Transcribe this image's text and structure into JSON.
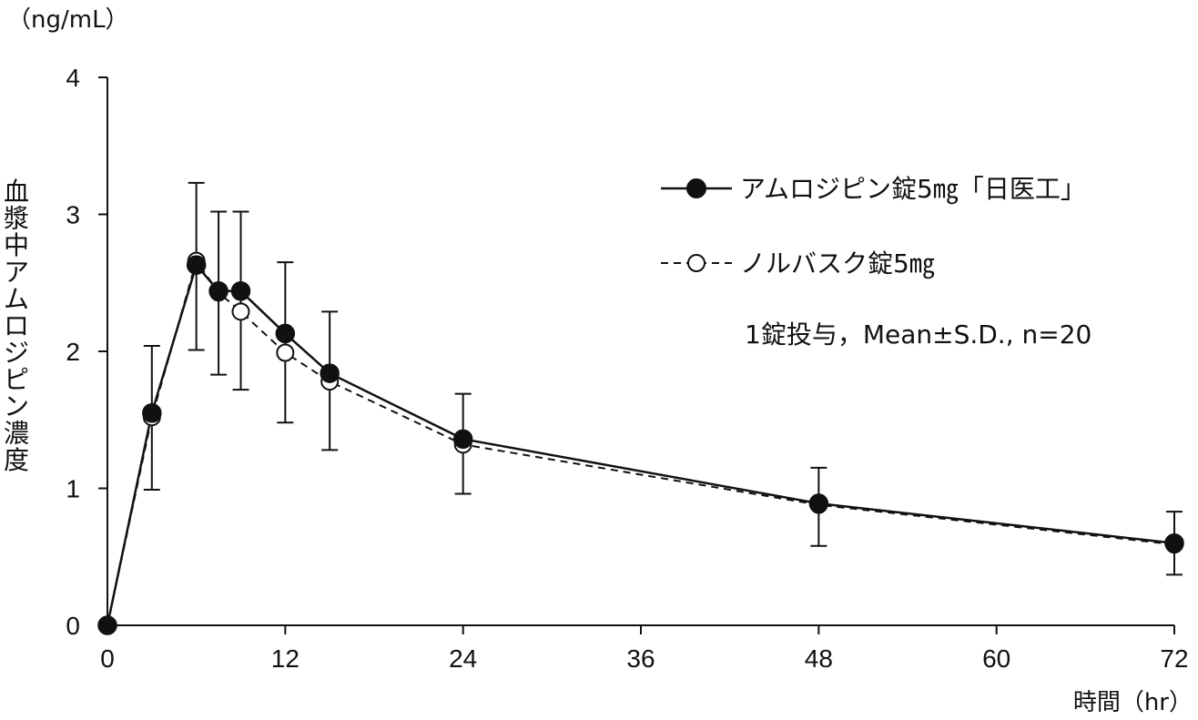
{
  "chart_data": {
    "type": "line",
    "y_unit_label": "（ng/mL）",
    "ylabel": "血漿中アムロジピン濃度",
    "x_unit_label": "時間（hr）",
    "xlim": [
      0,
      72
    ],
    "ylim": [
      0,
      4
    ],
    "x_ticks": [
      0,
      12,
      24,
      36,
      48,
      60,
      72
    ],
    "y_ticks": [
      0,
      1,
      2,
      3,
      4
    ],
    "grid": false,
    "legend_position": "top-right",
    "annotation": "1錠投与，Mean±S.D., n=20",
    "series": [
      {
        "name": "アムロジピン錠5㎎「日医工」",
        "marker": "filled-circle",
        "line_style": "solid",
        "x": [
          0,
          3,
          6,
          7.5,
          9,
          12,
          15,
          24,
          48,
          72
        ],
        "y": [
          0,
          1.55,
          2.63,
          2.44,
          2.44,
          2.13,
          1.84,
          1.36,
          0.89,
          0.6
        ],
        "y_upper": [
          null,
          2.04,
          3.23,
          3.02,
          3.02,
          2.65,
          2.29,
          1.69,
          1.15,
          0.83
        ],
        "y_lower": [
          null,
          0.99,
          2.01,
          1.83,
          1.72,
          1.48,
          1.28,
          0.96,
          0.58,
          0.37
        ]
      },
      {
        "name": "ノルバスク錠5㎎",
        "marker": "open-circle",
        "line_style": "dashed",
        "x": [
          0,
          3,
          6,
          7.5,
          9,
          12,
          15,
          24,
          48,
          72
        ],
        "y": [
          0,
          1.52,
          2.66,
          2.43,
          2.29,
          1.99,
          1.78,
          1.32,
          0.88,
          0.59
        ]
      }
    ]
  }
}
